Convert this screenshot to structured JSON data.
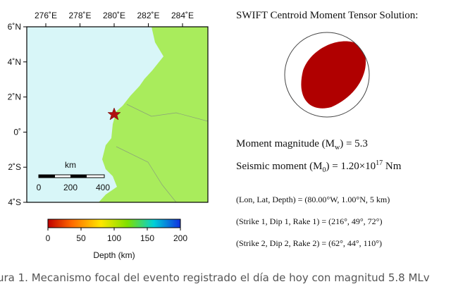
{
  "map": {
    "lon_ticks": [
      "276˚E",
      "278˚E",
      "280˚E",
      "282˚E",
      "284˚E"
    ],
    "lat_ticks": [
      "6˚N",
      "4˚N",
      "2˚N",
      "0˚",
      "2˚S",
      "4˚S"
    ],
    "scale_bar": {
      "unit": "km",
      "labels": [
        "0",
        "200",
        "400"
      ]
    },
    "colorbar": {
      "labels": [
        "0",
        "50",
        "100",
        "150",
        "200"
      ],
      "title": "Depth (km)"
    }
  },
  "solution": {
    "title": "SWIFT Centroid Moment Tensor Solution:",
    "magnitude": [
      "Moment magnitude (M",
      "w",
      ") = 5.3"
    ],
    "moment": [
      "Seismic moment (M",
      "0",
      ") = 1.20×10",
      "17",
      " Nm"
    ],
    "location": "(Lon, Lat, Depth) = (80.00°W, 1.00°N, 5 km)",
    "plane1": "(Strike 1, Dip 1, Rake 1) = (216°, 49°, 72°)",
    "plane2": "(Strike 2, Dip 2, Rake 2) = (62°, 44°, 110°)"
  },
  "caption": "ura 1. Mecanismo focal del evento registrado el día de hoy con magnitud 5.8 MLv"
}
